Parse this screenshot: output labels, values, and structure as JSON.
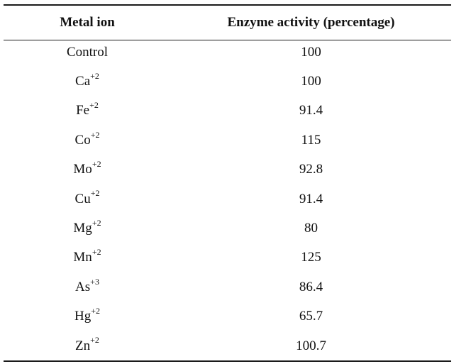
{
  "table": {
    "headers": {
      "metal_ion": "Metal ion",
      "enzyme_activity": "Enzyme activity (percentage)"
    },
    "rows": [
      {
        "ion": "Control",
        "charge": "",
        "activity": "100"
      },
      {
        "ion": "Ca",
        "charge": "+2",
        "activity": "100"
      },
      {
        "ion": "Fe",
        "charge": "+2",
        "activity": "91.4"
      },
      {
        "ion": "Co",
        "charge": "+2",
        "activity": "115"
      },
      {
        "ion": "Mo",
        "charge": "+2",
        "activity": "92.8"
      },
      {
        "ion": "Cu",
        "charge": "+2",
        "activity": "91.4"
      },
      {
        "ion": "Mg",
        "charge": "+2",
        "activity": "80"
      },
      {
        "ion": "Mn",
        "charge": "+2",
        "activity": "125"
      },
      {
        "ion": "As",
        "charge": "+3",
        "activity": "86.4"
      },
      {
        "ion": "Hg",
        "charge": "+2",
        "activity": "65.7"
      },
      {
        "ion": "Zn",
        "charge": "+2",
        "activity": "100.7"
      }
    ]
  }
}
